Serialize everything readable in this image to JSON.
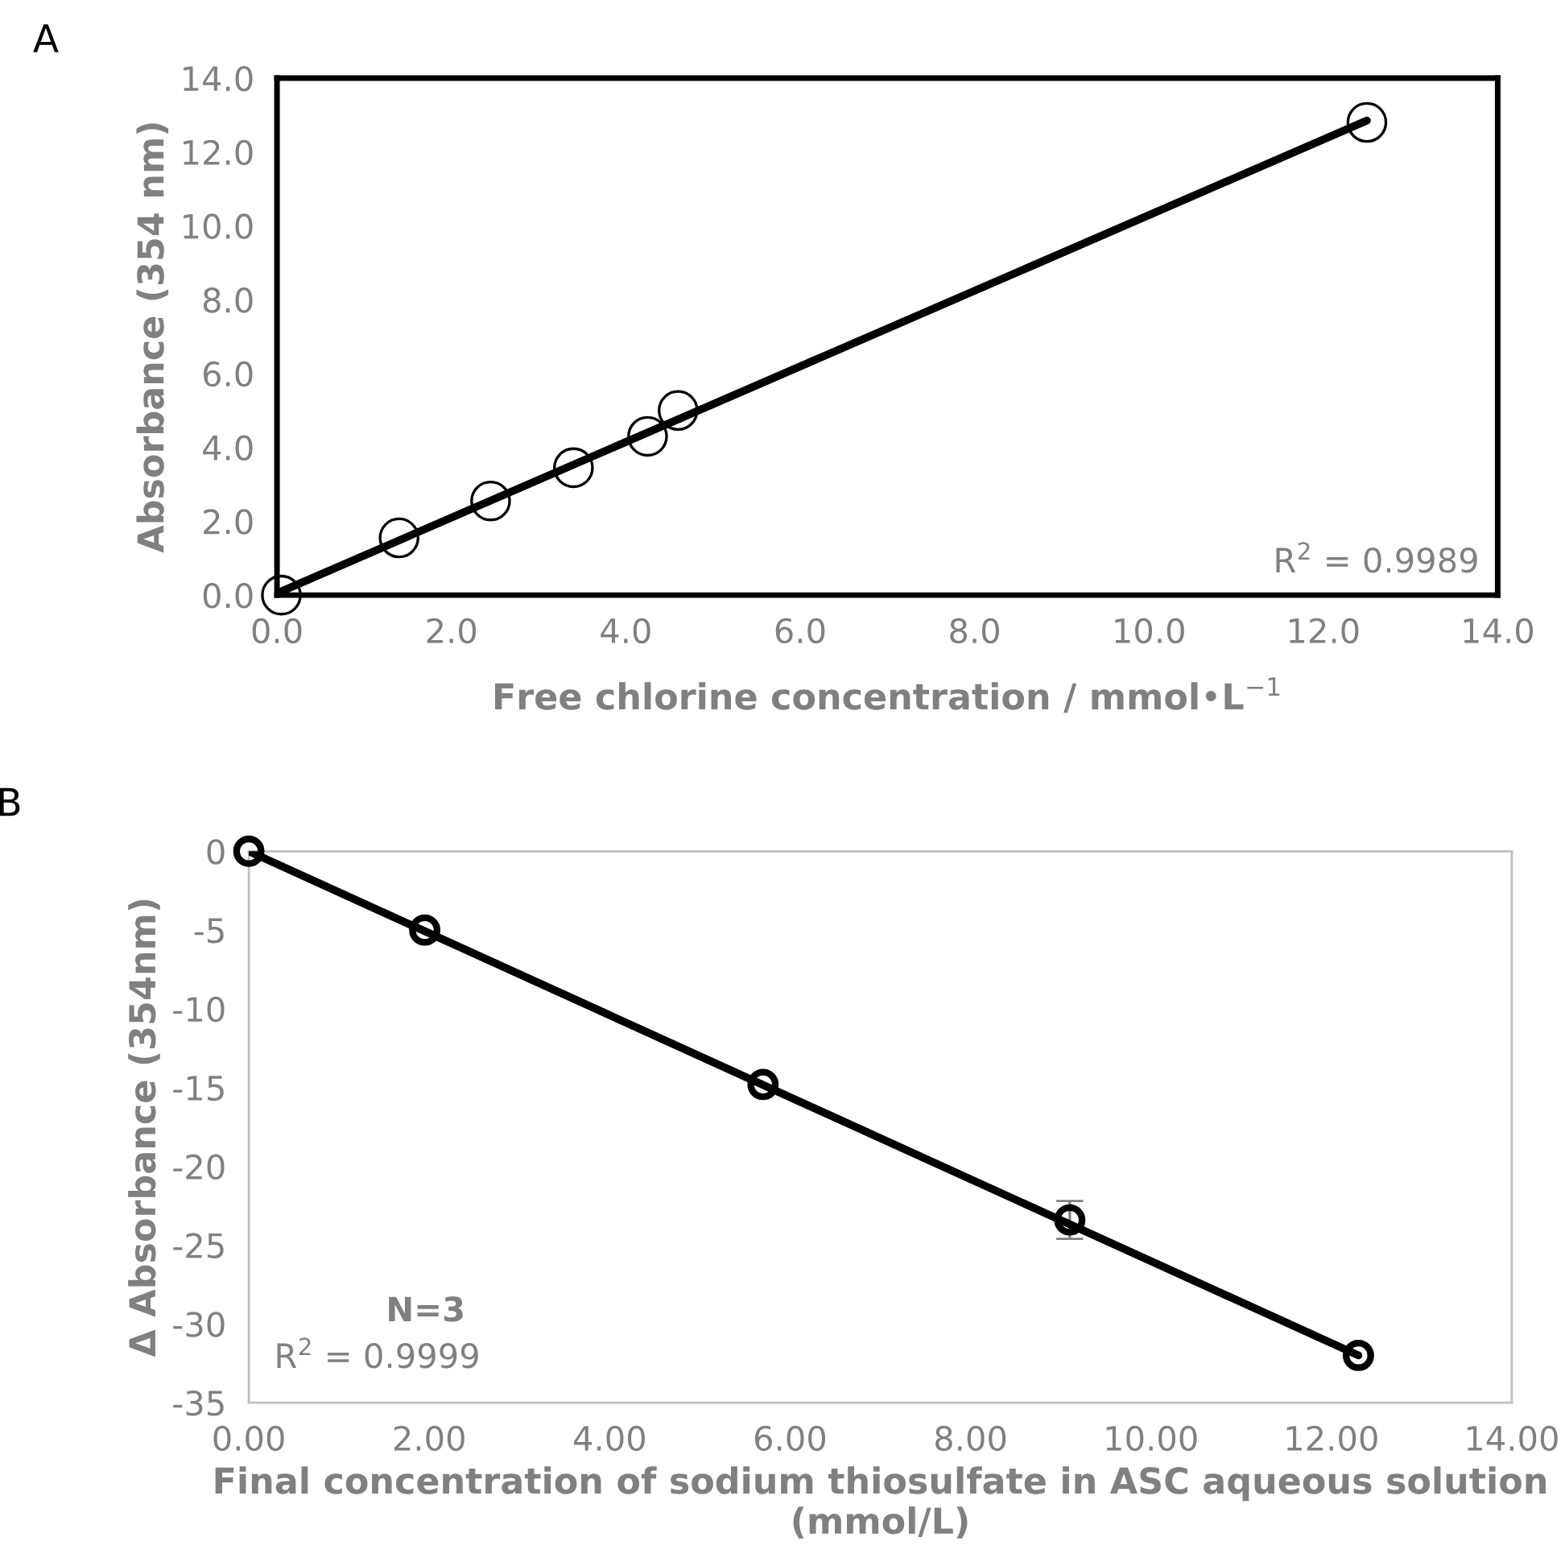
{
  "chart_data": [
    {
      "type": "scatter",
      "title": "A",
      "xlabel": "Free chlorine concentration / mmol•L$^{−1}$",
      "ylabel": "Absorbance (354 nm)",
      "xlim": [
        0,
        14
      ],
      "ylim": [
        0,
        14
      ],
      "xticks": [
        {
          "value": 0,
          "label": "0.0"
        },
        {
          "value": 2,
          "label": "2.0"
        },
        {
          "value": 4,
          "label": "4.0"
        },
        {
          "value": 6,
          "label": "6.0"
        },
        {
          "value": 8,
          "label": "8.0"
        },
        {
          "value": 10,
          "label": "10.0"
        },
        {
          "value": 12,
          "label": "12.0"
        },
        {
          "value": 14,
          "label": "14.0"
        }
      ],
      "yticks": [
        {
          "value": 0,
          "label": "0.0"
        },
        {
          "value": 2,
          "label": "2.0"
        },
        {
          "value": 4,
          "label": "4.0"
        },
        {
          "value": 6,
          "label": "6.0"
        },
        {
          "value": 8,
          "label": "8.0"
        },
        {
          "value": 10,
          "label": "10.0"
        },
        {
          "value": 12,
          "label": "12.0"
        },
        {
          "value": 14,
          "label": "14.0"
        }
      ],
      "grid": false,
      "legend": false,
      "line_style": "solid",
      "series": [
        {
          "marker": "circle",
          "color": "#000000",
          "x": [
            0.05,
            1.4,
            2.45,
            3.4,
            4.25,
            4.6,
            12.5
          ],
          "values": [
            0.0,
            1.55,
            2.55,
            3.45,
            4.3,
            5.0,
            12.8
          ]
        },
        {
          "type": "line",
          "marker": "none",
          "color": "#000000",
          "x": [
            0.05,
            12.5
          ],
          "values": [
            0.1,
            12.85
          ]
        }
      ],
      "annotations": [
        "R$^{2}$ = 0.9989"
      ]
    },
    {
      "type": "scatter",
      "title": "B",
      "xlabel": "Final concentration of sodium thiosulfate in ASC aqueous solution (mmol/L)",
      "ylabel": "Δ Absorbance (354nm)",
      "xlim": [
        0,
        14
      ],
      "ylim": [
        -35,
        0
      ],
      "xticks": [
        {
          "value": 0,
          "label": "0.00"
        },
        {
          "value": 2,
          "label": "2.00"
        },
        {
          "value": 4,
          "label": "4.00"
        },
        {
          "value": 6,
          "label": "6.00"
        },
        {
          "value": 8,
          "label": "8.00"
        },
        {
          "value": 10,
          "label": "10.00"
        },
        {
          "value": 12,
          "label": "12.00"
        },
        {
          "value": 14,
          "label": "14.00"
        }
      ],
      "yticks": [
        -35,
        -30,
        -25,
        -20,
        -15,
        -10,
        -5,
        0
      ],
      "grid": false,
      "legend": false,
      "line_style": "solid",
      "series": [
        {
          "marker": "circle",
          "color": "#000000",
          "x": [
            0.0,
            1.95,
            5.7,
            9.1,
            12.3
          ],
          "values": [
            0,
            -5.0,
            -14.8,
            -23.4,
            -32.0
          ],
          "errors": [
            null,
            null,
            null,
            1.2,
            null
          ]
        },
        {
          "type": "line",
          "marker": "none",
          "color": "#000000",
          "x": [
            0.0,
            12.3
          ],
          "values": [
            0.0,
            -32.0
          ]
        }
      ],
      "annotations": [
        "N=3",
        "R$^{2}$ = 0.9999"
      ]
    }
  ]
}
